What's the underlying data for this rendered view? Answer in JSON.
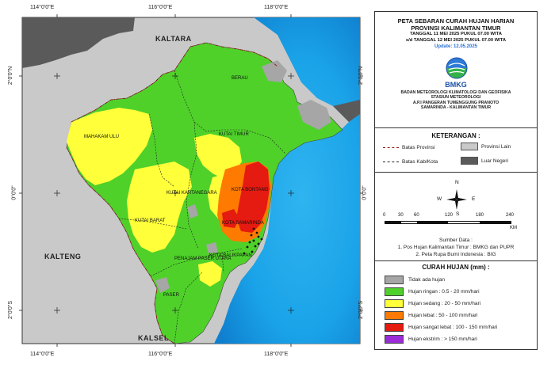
{
  "coords": {
    "top": [
      "114°0'0\"E",
      "116°0'0\"E",
      "118°0'0\"E"
    ],
    "bottom": [
      "114°0'0\"E",
      "116°0'0\"E",
      "118°0'0\"E"
    ],
    "left": [
      "2°0'0\"N",
      "0°0'0\"",
      "2°0'0\"S"
    ],
    "right": [
      "2°0'0\"N",
      "0°0'0\"",
      "2°0'0\"S"
    ]
  },
  "map_labels": {
    "kaltara": "KALTARA",
    "kalteng": "KALTENG",
    "kalsel": "KALSEL",
    "berau": "BERAU",
    "mahakam_ulu": "MAHAKAM ULU",
    "kutai_timur": "KUTAI TIMUR",
    "kutai_kartanegara": "KUTAI KARTANEGARA",
    "bontang": "KOTA BONTANG",
    "samarinda": "KOTA SAMARINDA",
    "kutai_barat": "KUTAI BARAT",
    "balikpapan": "KOTA BALIKPAPAN",
    "penajam": "PENAJAM PASER UTARA",
    "paser": "PASER"
  },
  "header": {
    "title_line1": "PETA SEBARAN CURAH HUJAN HARIAN",
    "title_line2": "PROVINSI KALIMANTAN TIMUR",
    "period_line1": "TANGGAL 11 MEI 2025 PUKUL 07.00 WITA",
    "period_line2": "s/d TANGGAL 12 MEI 2025 PUKUL 07.00 WITA",
    "update": "Update: 12.05.2025"
  },
  "agency": {
    "logo_text": "BMKG",
    "line1": "BADAN METEOROLOGI KLIMATOLOGI DAN GEOFISIKA",
    "line2": "STASIUN METEOROLOGI",
    "line3": "A.P.I PANGERAN TUMENGGUNG PRANOTO",
    "line4": "SAMARINDA - KALIMANTAN TIMUR"
  },
  "keterangan": {
    "title": "KETERANGAN :",
    "batas_provinsi": "Batas Provinsi",
    "batas_kab": "Batas Kab/Kota",
    "provinsi_lain": "Provinsi Lain",
    "luar_negeri": "Luar Negeri"
  },
  "compass": {
    "n": "N",
    "s": "S",
    "e": "E",
    "w": "W"
  },
  "scale": {
    "ticks": [
      "0",
      "30",
      "60",
      "120",
      "180",
      "240"
    ],
    "unit": "KM"
  },
  "sumber": {
    "title": "Sumber Data :",
    "line1": "1. Pos Hujan Kalimantan Timur : BMKG dan PUPR",
    "line2": "2. Peta Rupa Bumi Indonesia : BIG"
  },
  "curah_hujan": {
    "title": "CURAH HUJAN (mm) :",
    "items": [
      {
        "label": "Tidak ada hujan",
        "color": "#a6a6a6"
      },
      {
        "label": "Hujan ringan : 0.5 - 20 mm/hari",
        "color": "#4fd12a"
      },
      {
        "label": "Hujan sedang : 20 - 50 mm/hari",
        "color": "#ffff3a"
      },
      {
        "label": "Hujan lebat : 50 - 100 mm/hari",
        "color": "#ff7a00"
      },
      {
        "label": "Hujan sangat lebat : 100 - 150 mm/hari",
        "color": "#e51a10"
      },
      {
        "label": "Hujan ekstrim : > 150 mm/hari",
        "color": "#9b2cd8"
      }
    ]
  },
  "colors": {
    "sea": "#1aa3e8",
    "neighbor": "#c9c9c9",
    "foreign": "#5a5a5a",
    "light": "#4fd12a",
    "moderate": "#ffff3a",
    "heavy": "#ff7a00",
    "very_heavy": "#e51a10",
    "none": "#a6a6a6"
  }
}
